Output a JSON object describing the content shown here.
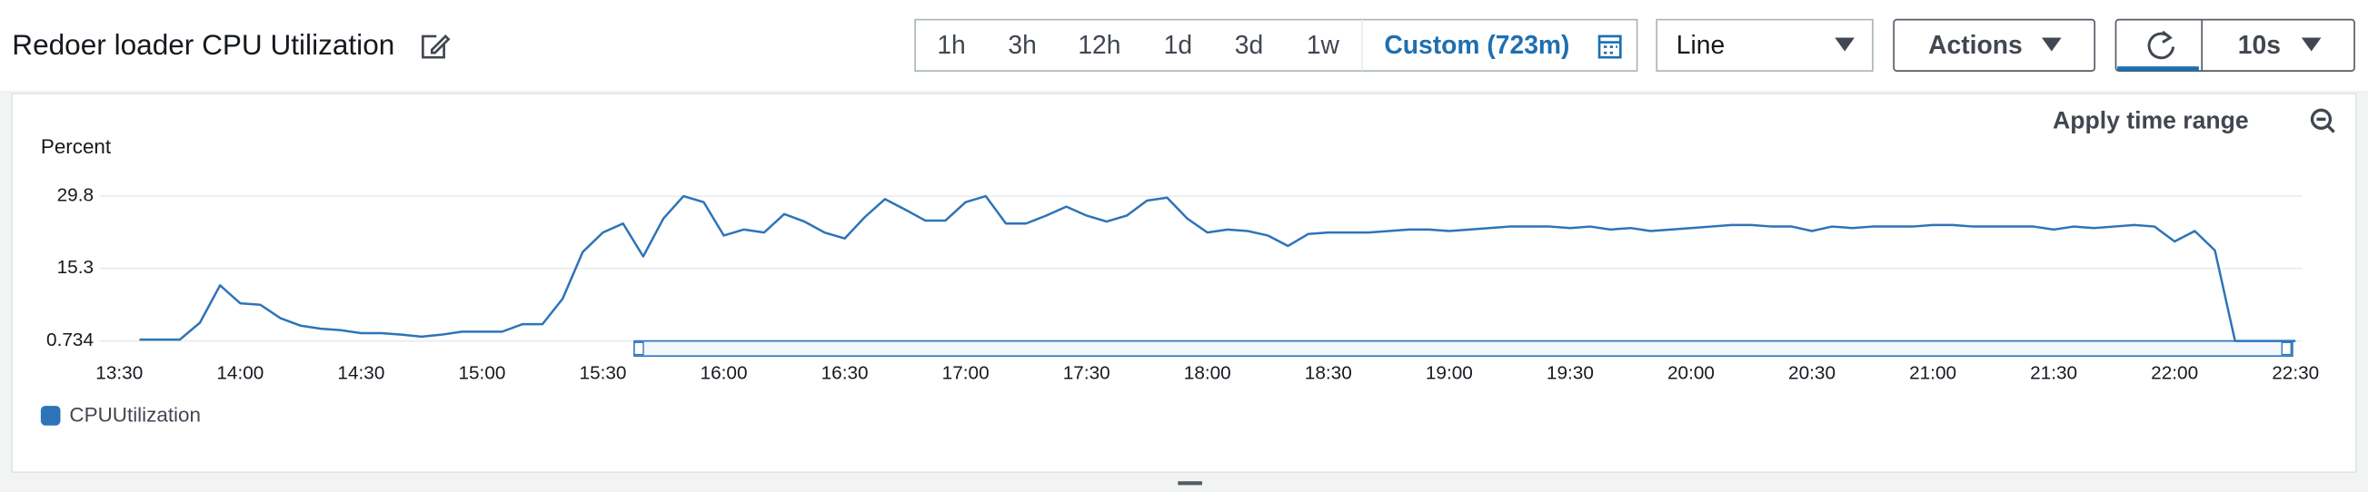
{
  "toolbar": {
    "title": "Redoer loader CPU Utilization",
    "time_ranges": [
      "1h",
      "3h",
      "12h",
      "1d",
      "3d",
      "1w"
    ],
    "custom_range": "Custom (723m)",
    "view": "Line",
    "actions": "Actions",
    "refresh_interval": "10s"
  },
  "panel": {
    "apply_time_range": "Apply time range"
  },
  "chart_data": {
    "type": "line",
    "y_label": "Percent",
    "x": [
      "13:35",
      "13:40",
      "13:45",
      "13:50",
      "13:55",
      "14:00",
      "14:05",
      "14:10",
      "14:15",
      "14:20",
      "14:25",
      "14:30",
      "14:35",
      "14:40",
      "14:45",
      "14:50",
      "14:55",
      "15:00",
      "15:05",
      "15:10",
      "15:15",
      "15:20",
      "15:25",
      "15:30",
      "15:35",
      "15:40",
      "15:45",
      "15:50",
      "15:55",
      "16:00",
      "16:05",
      "16:10",
      "16:15",
      "16:20",
      "16:25",
      "16:30",
      "16:35",
      "16:40",
      "16:45",
      "16:50",
      "16:55",
      "17:00",
      "17:05",
      "17:10",
      "17:15",
      "17:20",
      "17:25",
      "17:30",
      "17:35",
      "17:40",
      "17:45",
      "17:50",
      "17:55",
      "18:00",
      "18:05",
      "18:10",
      "18:15",
      "18:20",
      "18:25",
      "18:30",
      "18:35",
      "18:40",
      "18:45",
      "18:50",
      "18:55",
      "19:00",
      "19:05",
      "19:10",
      "19:15",
      "19:20",
      "19:25",
      "19:30",
      "19:35",
      "19:40",
      "19:45",
      "19:50",
      "19:55",
      "20:00",
      "20:05",
      "20:10",
      "20:15",
      "20:20",
      "20:25",
      "20:30",
      "20:35",
      "20:40",
      "20:45",
      "20:50",
      "20:55",
      "21:00",
      "21:05",
      "21:10",
      "21:15",
      "21:20",
      "21:25",
      "21:30",
      "21:35",
      "21:40",
      "21:45",
      "21:50",
      "21:55",
      "22:00",
      "22:05",
      "22:10",
      "22:15",
      "22:20",
      "22:25",
      "22:30"
    ],
    "series": [
      {
        "name": "CPUUtilization",
        "color": "#2e73b8",
        "values": [
          1.0,
          1.0,
          1.0,
          4.4,
          11.9,
          8.3,
          8.0,
          5.3,
          3.8,
          3.2,
          2.9,
          2.3,
          2.3,
          2.0,
          1.6,
          2.0,
          2.6,
          2.6,
          2.6,
          4.1,
          4.1,
          9.2,
          18.6,
          22.5,
          24.3,
          17.7,
          25.3,
          29.8,
          28.6,
          21.9,
          23.1,
          22.5,
          26.2,
          24.7,
          22.5,
          21.3,
          25.6,
          29.2,
          27.1,
          24.9,
          24.9,
          28.6,
          29.8,
          24.3,
          24.3,
          25.9,
          27.7,
          25.9,
          24.7,
          25.9,
          28.9,
          29.5,
          25.3,
          22.5,
          23.1,
          22.8,
          21.9,
          19.8,
          22.2,
          22.5,
          22.5,
          22.5,
          22.8,
          23.1,
          23.1,
          22.8,
          23.1,
          23.4,
          23.7,
          23.7,
          23.7,
          23.4,
          23.7,
          23.1,
          23.4,
          22.8,
          23.1,
          23.4,
          23.7,
          24.0,
          24.0,
          23.7,
          23.7,
          22.8,
          23.7,
          23.4,
          23.7,
          23.7,
          23.7,
          24.0,
          24.0,
          23.7,
          23.7,
          23.7,
          23.7,
          23.1,
          23.7,
          23.4,
          23.7,
          24.0,
          23.7,
          20.7,
          22.8,
          18.9,
          0.734,
          0.734,
          0.734,
          0.734
        ]
      }
    ],
    "xlim": [
      "13:30",
      "22:30"
    ],
    "xticks": [
      "13:30",
      "14:00",
      "14:30",
      "15:00",
      "15:30",
      "16:00",
      "16:30",
      "17:00",
      "17:30",
      "18:00",
      "18:30",
      "19:00",
      "19:30",
      "20:00",
      "20:30",
      "21:00",
      "21:30",
      "22:00",
      "22:30"
    ],
    "ylim": [
      0.734,
      29.8
    ],
    "yticks": [
      0.734,
      15.3,
      29.8
    ],
    "grid": true
  }
}
